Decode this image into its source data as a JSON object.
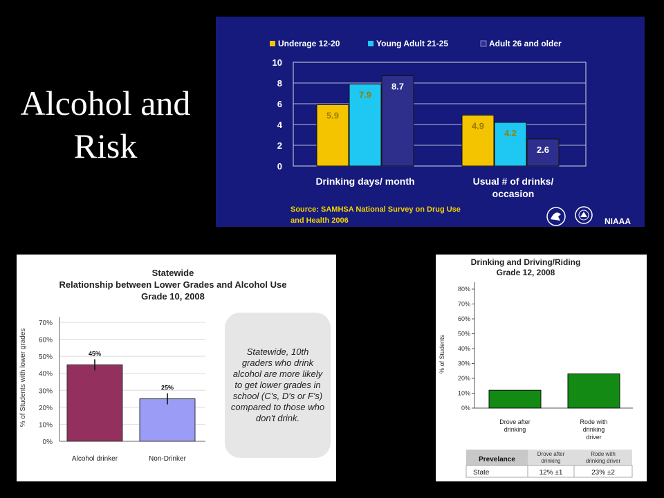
{
  "slide": {
    "title_line1": "Alcohol and",
    "title_line2": "Risk"
  },
  "logos": {
    "niaaa": "NIAAA",
    "hhs_logo_icon": "hhs-eagle-icon",
    "nih_logo_icon": "nih-emblem-icon"
  },
  "chart_data": [
    {
      "type": "bar",
      "title": "",
      "categories": [
        "Drinking days/ month",
        "Usual # of drinks/ occasion"
      ],
      "series": [
        {
          "name": "Underage 12-20",
          "values": [
            5.9,
            4.9
          ],
          "color": "#f5c400"
        },
        {
          "name": "Young Adult 21-25",
          "values": [
            7.9,
            4.2
          ],
          "color": "#1ec8f2"
        },
        {
          "name": "Adult 26 and older",
          "values": [
            8.7,
            2.6
          ],
          "color": "#2e2e8c"
        }
      ],
      "data_labels": [
        "5.9",
        "4.9",
        "7.9",
        "4.2",
        "8.7",
        "2.6"
      ],
      "yticks": [
        "0",
        "2",
        "4",
        "6",
        "8",
        "10"
      ],
      "ylim": [
        0,
        10
      ],
      "grid": true,
      "legend": "top",
      "source_line1": "Source:  SAMHSA National Survey on Drug Use",
      "source_line2": "and Health 2006"
    },
    {
      "type": "bar",
      "title": "Statewide",
      "subtitle_line1": "Relationship between Lower Grades and Alcohol Use",
      "subtitle_line2": "Grade 10, 2008",
      "ylabel": "% of Students with lower grades",
      "categories": [
        "Alcohol drinker",
        "Non-Drinker"
      ],
      "values": [
        45,
        25
      ],
      "data_labels": [
        "45%",
        "25%"
      ],
      "colors": [
        "#93305e",
        "#9a9cf6"
      ],
      "yticks": [
        "0%",
        "10%",
        "20%",
        "30%",
        "40%",
        "50%",
        "60%",
        "70%"
      ],
      "ylim": [
        0,
        70
      ],
      "error_bars": true,
      "callout": "Statewide, 10th graders who drink alcohol are more likely to get lower grades in school (C's, D's or F's) compared to those who don't drink."
    },
    {
      "type": "bar",
      "title": "Drinking and Driving/Riding",
      "subtitle": "Grade 12, 2008",
      "ylabel": "% of Students",
      "categories": [
        "Drove after drinking",
        "Rode with drinking driver"
      ],
      "category_lines": [
        [
          "Drove after",
          "drinking"
        ],
        [
          "Rode with",
          "drinking",
          "driver"
        ]
      ],
      "values": [
        12,
        23
      ],
      "color": "#138a13",
      "yticks": [
        "0%",
        "10%",
        "20%",
        "30%",
        "40%",
        "50%",
        "60%",
        "70%",
        "80%"
      ],
      "ylim": [
        0,
        80
      ],
      "table": {
        "header": [
          "Prevelance",
          "Drove after drinking",
          "Rode with drinking driver"
        ],
        "header_col1_lines": [
          "Drove after",
          "drinking"
        ],
        "header_col2_lines": [
          "Rode with",
          "drinking driver"
        ],
        "rows": [
          [
            "State",
            "12% ±1",
            "23% ±2"
          ]
        ]
      }
    }
  ]
}
